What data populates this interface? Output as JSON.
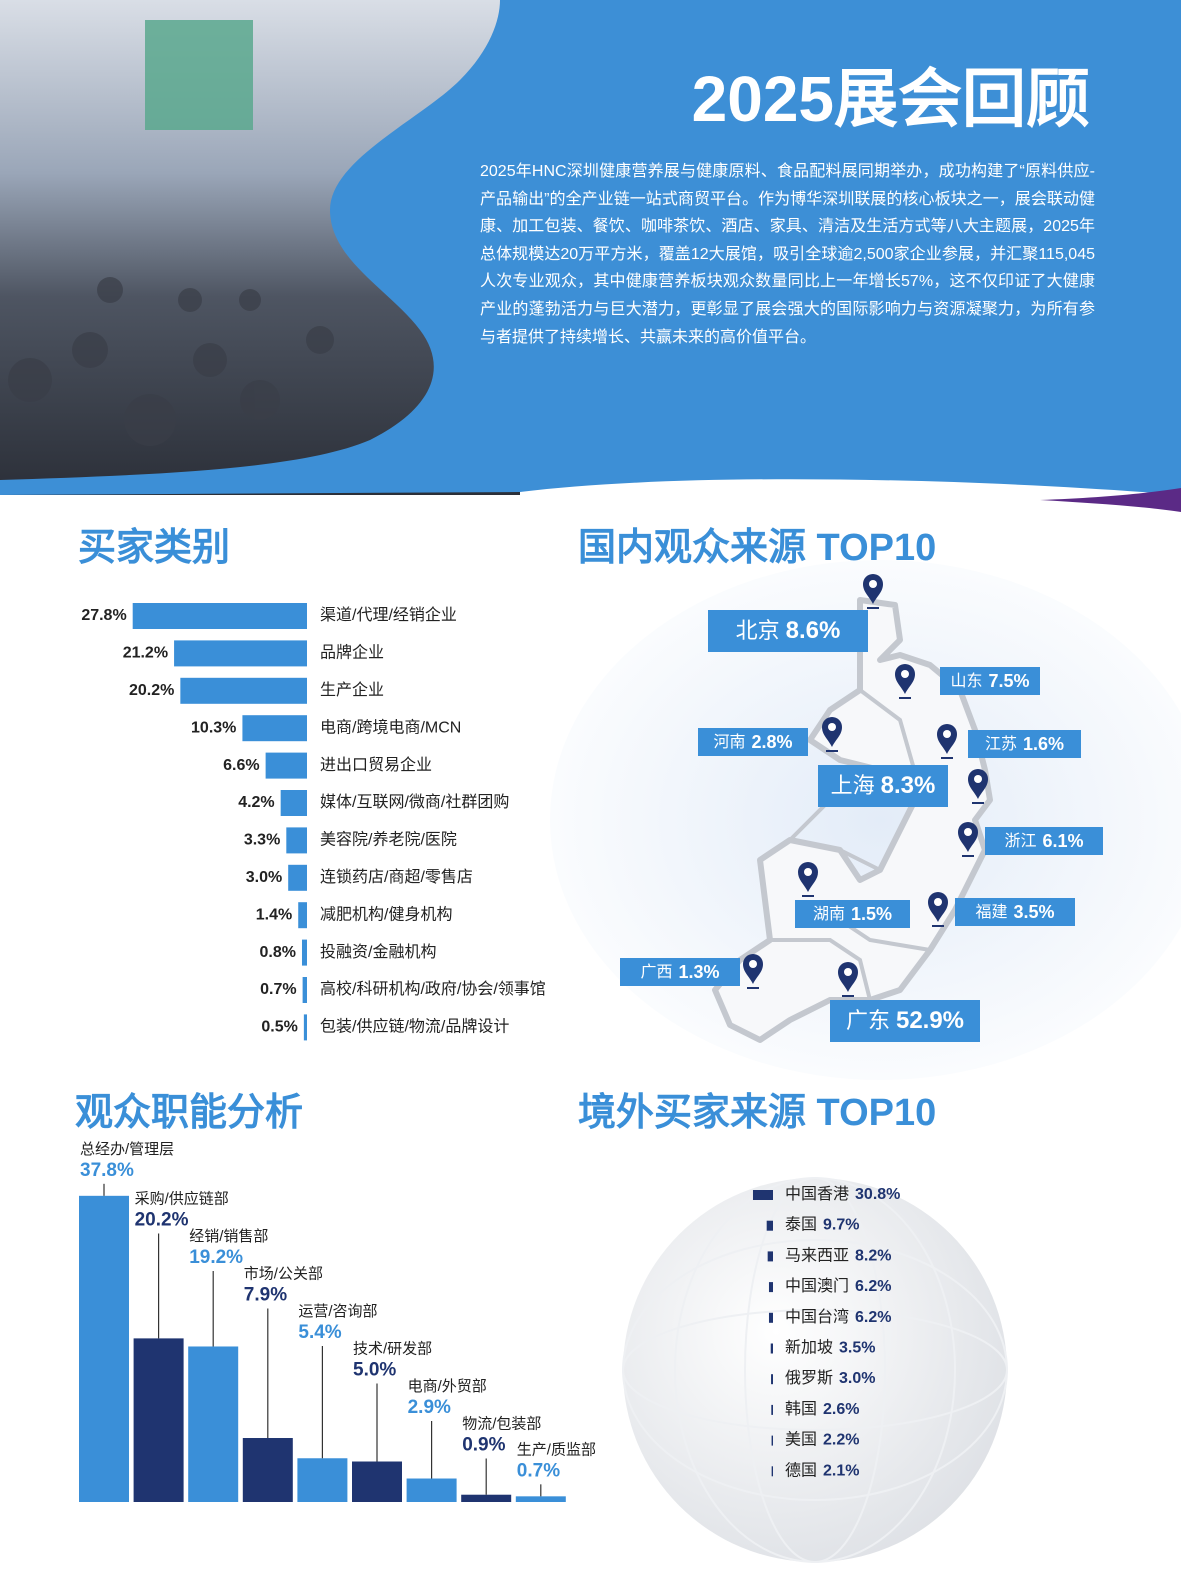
{
  "header": {
    "title": "2025展会回顾",
    "body": "2025年HNC深圳健康营养展与健康原料、食品配料展同期举办，成功构建了“原料供应-产品输出”的全产业链一站式商贸平台。作为博华深圳联展的核心板块之一，展会联动健康、加工包装、餐饮、咖啡茶饮、酒店、家具、清洁及生活方式等八大主题展，2025年总体规模达20万平方米，覆盖12大展馆，吸引全球逾2,500家企业参展，并汇聚115,045人次专业观众，其中健康营养板块观众数量同比上一年增长57%，这不仅印证了大健康产业的蓬勃活力与巨大潜力，更彰显了展会强大的国际影响力与资源凝聚力，为所有参与者提供了持续增长、共赢未来的高价值平台。"
  },
  "chart_data": [
    {
      "type": "hbar",
      "title": "买家类别",
      "categories": [
        "渠道/代理/经销企业",
        "品牌企业",
        "生产企业",
        "电商/跨境电商/MCN",
        "进出口贸易企业",
        "媒体/互联网/微商/社群团购",
        "美容院/养老院/医院",
        "连锁药店/商超/零售店",
        "减肥机构/健身机构",
        "投融资/金融机构",
        "高校/科研机构/政府/协会/领事馆",
        "包装/供应链/物流/品牌设计"
      ],
      "values": [
        27.8,
        21.2,
        20.2,
        10.3,
        6.6,
        4.2,
        3.3,
        3.0,
        1.4,
        0.8,
        0.7,
        0.5
      ],
      "value_labels": [
        "27.8%",
        "21.2%",
        "20.2%",
        "10.3%",
        "6.6%",
        "4.2%",
        "3.3%",
        "3.0%",
        "1.4%",
        "0.8%",
        "0.7%",
        "0.5%"
      ],
      "color": "#3a8fd8"
    },
    {
      "type": "map",
      "title": "国内观众来源 TOP10",
      "categories": [
        "北京",
        "山东",
        "河南",
        "江苏",
        "上海",
        "浙江",
        "湖南",
        "福建",
        "广西",
        "广东"
      ],
      "values": [
        8.6,
        7.5,
        2.8,
        1.6,
        8.3,
        6.1,
        1.5,
        3.5,
        1.3,
        52.9
      ],
      "value_labels": [
        "8.6%",
        "7.5%",
        "2.8%",
        "1.6%",
        "8.3%",
        "6.1%",
        "1.5%",
        "3.5%",
        "1.3%",
        "52.9%"
      ],
      "color": "#3a8fd8"
    },
    {
      "type": "column",
      "title": "观众职能分析",
      "categories": [
        "总经办/管理层",
        "采购/供应链部",
        "经销/销售部",
        "市场/公关部",
        "运营/咨询部",
        "技术/研发部",
        "电商/外贸部",
        "物流/包装部",
        "生产/质监部"
      ],
      "values": [
        37.8,
        20.2,
        19.2,
        7.9,
        5.4,
        5.0,
        2.9,
        0.9,
        0.7
      ],
      "value_labels": [
        "37.8%",
        "20.2%",
        "19.2%",
        "7.9%",
        "5.4%",
        "5.0%",
        "2.9%",
        "0.9%",
        "0.7%"
      ],
      "colors": [
        "#3a8fd8",
        "#1f3470",
        "#3a8fd8",
        "#1f3470",
        "#3a8fd8",
        "#1f3470",
        "#3a8fd8",
        "#1f3470",
        "#3a8fd8"
      ]
    },
    {
      "type": "list",
      "title": "境外买家来源 TOP10",
      "categories": [
        "中国香港",
        "泰国",
        "马来西亚",
        "中国澳门",
        "中国台湾",
        "新加坡",
        "俄罗斯",
        "韩国",
        "美国",
        "德国"
      ],
      "values": [
        30.8,
        9.7,
        8.2,
        6.2,
        6.2,
        3.5,
        3.0,
        2.6,
        2.2,
        2.1
      ],
      "value_labels": [
        "30.8%",
        "9.7%",
        "8.2%",
        "6.2%",
        "6.2%",
        "3.5%",
        "3.0%",
        "2.6%",
        "2.2%",
        "2.1%"
      ],
      "color": "#1f3470"
    }
  ]
}
